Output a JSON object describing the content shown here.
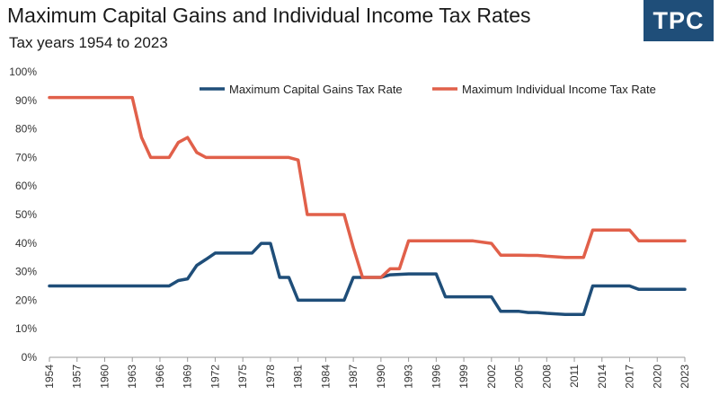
{
  "logo": {
    "text": "TPC",
    "color": "#1f4e79"
  },
  "chart_data": {
    "type": "line",
    "title": "Maximum Capital Gains and Individual Income Tax Rates",
    "subtitle": "Tax years 1954 to 2023",
    "xlabel": "",
    "ylabel": "",
    "xlim": [
      1954,
      2023
    ],
    "ylim": [
      0,
      100
    ],
    "grid": false,
    "legend_position": "top-right",
    "x_ticks": [
      "1954",
      "1957",
      "1960",
      "1963",
      "1966",
      "1969",
      "1972",
      "1975",
      "1978",
      "1981",
      "1984",
      "1987",
      "1990",
      "1993",
      "1996",
      "1999",
      "2002",
      "2005",
      "2008",
      "2011",
      "2014",
      "2017",
      "2020",
      "2023"
    ],
    "y_ticks": [
      "0%",
      "10%",
      "20%",
      "30%",
      "40%",
      "50%",
      "60%",
      "70%",
      "80%",
      "90%",
      "100%"
    ],
    "series": [
      {
        "name": "Maximum Capital Gains Tax Rate",
        "color": "#1f4e79",
        "points": [
          [
            1954,
            25
          ],
          [
            1967,
            25
          ],
          [
            1968,
            26.9
          ],
          [
            1969,
            27.5
          ],
          [
            1970,
            32.2
          ],
          [
            1971,
            34.3
          ],
          [
            1972,
            36.5
          ],
          [
            1976,
            36.5
          ],
          [
            1977,
            39.9
          ],
          [
            1978,
            39.9
          ],
          [
            1979,
            28
          ],
          [
            1980,
            28
          ],
          [
            1981,
            20
          ],
          [
            1986,
            20
          ],
          [
            1987,
            28
          ],
          [
            1990,
            28
          ],
          [
            1991,
            28.9
          ],
          [
            1993,
            29.2
          ],
          [
            1996,
            29.2
          ],
          [
            1997,
            21.2
          ],
          [
            2002,
            21.2
          ],
          [
            2003,
            16.1
          ],
          [
            2005,
            16.1
          ],
          [
            2006,
            15.7
          ],
          [
            2007,
            15.7
          ],
          [
            2008,
            15.4
          ],
          [
            2010,
            15
          ],
          [
            2012,
            15
          ],
          [
            2013,
            25
          ],
          [
            2017,
            25
          ],
          [
            2018,
            23.8
          ],
          [
            2023,
            23.8
          ]
        ]
      },
      {
        "name": "Maximum Individual Income Tax Rate",
        "color": "#e1604a",
        "points": [
          [
            1954,
            91
          ],
          [
            1963,
            91
          ],
          [
            1964,
            77
          ],
          [
            1965,
            70
          ],
          [
            1967,
            70
          ],
          [
            1968,
            75.25
          ],
          [
            1969,
            77
          ],
          [
            1970,
            71.75
          ],
          [
            1971,
            70
          ],
          [
            1980,
            70
          ],
          [
            1981,
            69.13
          ],
          [
            1982,
            50
          ],
          [
            1986,
            50
          ],
          [
            1987,
            38.5
          ],
          [
            1988,
            28
          ],
          [
            1990,
            28
          ],
          [
            1991,
            31
          ],
          [
            1992,
            31
          ],
          [
            1993,
            40.8
          ],
          [
            2000,
            40.8
          ],
          [
            2002,
            39.9
          ],
          [
            2003,
            35.8
          ],
          [
            2005,
            35.8
          ],
          [
            2006,
            35.7
          ],
          [
            2007,
            35.7
          ],
          [
            2008,
            35.4
          ],
          [
            2010,
            35
          ],
          [
            2012,
            35
          ],
          [
            2013,
            44.6
          ],
          [
            2017,
            44.6
          ],
          [
            2018,
            40.8
          ],
          [
            2023,
            40.8
          ]
        ]
      }
    ]
  }
}
